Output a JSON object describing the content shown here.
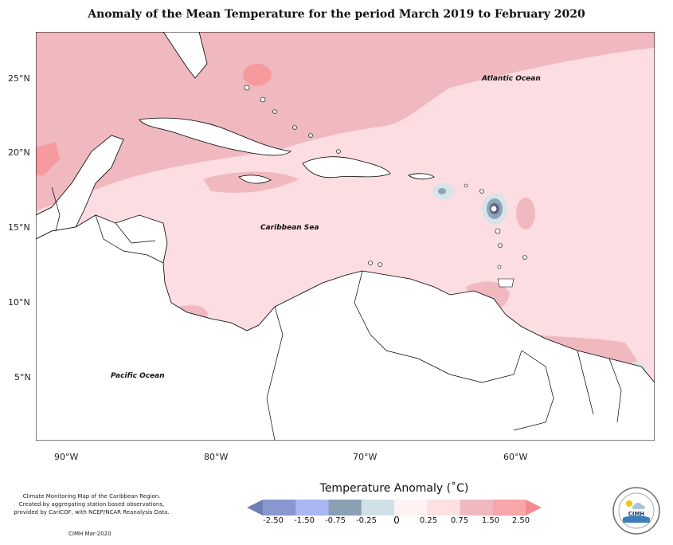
{
  "title": "Anomaly of the Mean Temperature for the period March 2019 to February 2020",
  "axes": {
    "lat_labels": [
      "25°N",
      "20°N",
      "15°N",
      "10°N",
      "5°N"
    ],
    "lon_labels": [
      "90°W",
      "80°W",
      "70°W",
      "60°W"
    ]
  },
  "map": {
    "labels": {
      "atlantic": "Atlantic Ocean",
      "caribbean": "Caribbean Sea",
      "pacific": "Pacific Ocean"
    },
    "colors": {
      "light_pink": "#fcdde1",
      "pink": "#efb9bf",
      "red": "#f79a9e",
      "light_blue": "#d7e4ea",
      "blue_grey": "#8fa4b8",
      "dark_blue": "#5a6e8c"
    }
  },
  "legend": {
    "title": "Temperature Anomaly (˚C)",
    "ticks": [
      "-2.50",
      "-1.50",
      "-0.75",
      "-0.25",
      "0",
      "0.25",
      "0.75",
      "1.50",
      "2.50"
    ],
    "colors": [
      "#6f7fb4",
      "#8a97cf",
      "#a9b7f3",
      "#8aa1b3",
      "#cfe0e6",
      "#fef2f2",
      "#fce0e3",
      "#efb9bf",
      "#f7a6aa",
      "#f58a8f"
    ]
  },
  "credit": {
    "line1": "Climate Monitoring Map of the Caribbean Region.",
    "line2": "Created by aggregating station based observations,",
    "line3": "provided by CariCOF, with NCEP/NCAR Reanalysis Data.",
    "date": "CIMH Mar-2020"
  },
  "logo": {
    "text": "CIMH"
  }
}
